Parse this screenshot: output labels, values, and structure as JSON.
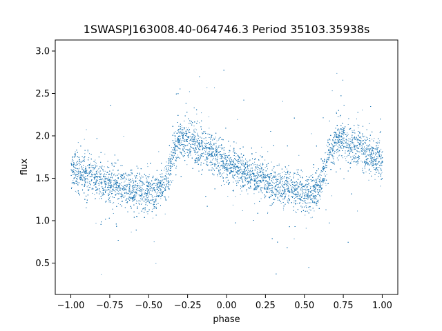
{
  "chart_data": {
    "type": "scatter",
    "title": "1SWASPJ163008.40-064746.3 Period 35103.35938s",
    "xlabel": "phase",
    "ylabel": "flux",
    "xlim": [
      -1.1,
      1.1
    ],
    "ylim": [
      0.13,
      3.13
    ],
    "x_ticks": [
      -1.0,
      -0.75,
      -0.5,
      -0.25,
      0.0,
      0.25,
      0.5,
      0.75,
      1.0
    ],
    "x_tick_labels": [
      "−1.00",
      "−0.75",
      "−0.50",
      "−0.25",
      "0.00",
      "0.25",
      "0.50",
      "0.75",
      "1.00"
    ],
    "y_ticks": [
      0.5,
      1.0,
      1.5,
      2.0,
      2.5,
      3.0
    ],
    "y_tick_labels": [
      "0.5",
      "1.0",
      "1.5",
      "2.0",
      "2.5",
      "3.0"
    ],
    "grid": false,
    "point_color": "#1f77b4",
    "x_range": [
      -1.0,
      1.0
    ],
    "series": [
      {
        "phase": [
          -1.0,
          -0.9,
          -0.8,
          -0.7,
          -0.6,
          -0.5,
          -0.45,
          -0.4,
          -0.35,
          -0.3,
          -0.25,
          -0.2,
          -0.1,
          0.0,
          0.1,
          0.2,
          0.3,
          0.4,
          0.5,
          0.55,
          0.6,
          0.65,
          0.7,
          0.75,
          0.8,
          0.9,
          1.0
        ],
        "flux_mean": [
          1.6,
          1.53,
          1.47,
          1.41,
          1.37,
          1.34,
          1.33,
          1.42,
          1.75,
          1.95,
          1.97,
          1.9,
          1.8,
          1.68,
          1.57,
          1.5,
          1.43,
          1.38,
          1.34,
          1.33,
          1.42,
          1.75,
          1.95,
          1.97,
          1.9,
          1.8,
          1.68
        ]
      }
    ]
  }
}
